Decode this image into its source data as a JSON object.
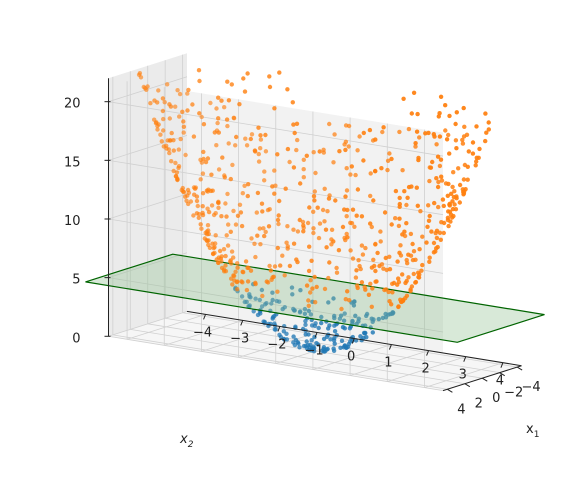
{
  "chart_data": {
    "type": "scatter",
    "projection": "3d",
    "grid": true,
    "axes": {
      "x1": {
        "label_main": "x",
        "label_sub": "1",
        "ticks": [
          "4",
          "2",
          "0",
          "−2",
          "−4"
        ],
        "range": [
          -4.5,
          4.5
        ]
      },
      "x2": {
        "label_main": "x",
        "label_sub": "2",
        "ticks": [
          "−4",
          "−3",
          "−2",
          "−1",
          "0",
          "1",
          "2",
          "3",
          "4"
        ],
        "range": [
          -4.5,
          4.5
        ]
      },
      "z": {
        "ticks": [
          "0",
          "5",
          "10",
          "15",
          "20"
        ],
        "range": [
          0,
          22
        ]
      }
    },
    "surface": {
      "relation": "z = x1^2 + x2^2",
      "sample_count": 1000,
      "x_range": [
        -4.4,
        4.4
      ]
    },
    "threshold_plane": {
      "z": 4.5,
      "extent": [
        -5,
        5
      ],
      "fill": "#90c090",
      "edge": "#006400"
    },
    "series": [
      {
        "color": "#1f77b4",
        "rule": "z < 4.5"
      },
      {
        "color": "#ff7f0e",
        "rule": "z >= 4.5"
      }
    ]
  }
}
